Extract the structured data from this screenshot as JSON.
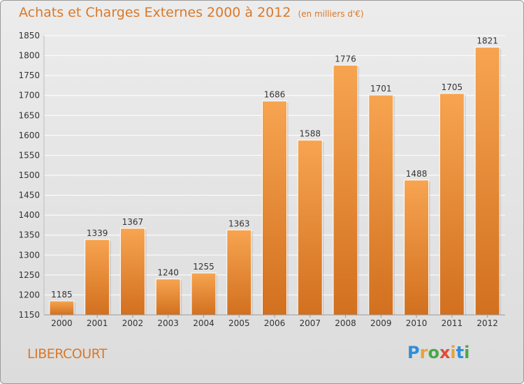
{
  "title": "Achats et Charges Externes 2000 à 2012",
  "subtitle": "(en milliers d'€)",
  "commune": "LIBERCOURT",
  "logo": {
    "text": "Proxiti",
    "colors": [
      "#2f8fd8",
      "#e8a23a",
      "#49a84a",
      "#e04a3a",
      "#e8a23a",
      "#2f8fd8",
      "#49a84a"
    ]
  },
  "colors": {
    "bar_light": "#f7a450",
    "bar_dark": "#d2701f",
    "text": "#333333",
    "accent": "#d9792a"
  },
  "chart_data": {
    "type": "bar",
    "categories": [
      "2000",
      "2001",
      "2002",
      "2003",
      "2004",
      "2005",
      "2006",
      "2007",
      "2008",
      "2009",
      "2010",
      "2011",
      "2012"
    ],
    "values": [
      1185,
      1339,
      1367,
      1240,
      1255,
      1363,
      1686,
      1588,
      1776,
      1701,
      1488,
      1705,
      1821
    ],
    "title": "Achats et Charges Externes 2000 à 2012",
    "ylim": [
      1150,
      1850
    ],
    "yticks": [
      1150,
      1200,
      1250,
      1300,
      1350,
      1400,
      1450,
      1500,
      1550,
      1600,
      1650,
      1700,
      1750,
      1800,
      1850
    ],
    "grid": true
  }
}
